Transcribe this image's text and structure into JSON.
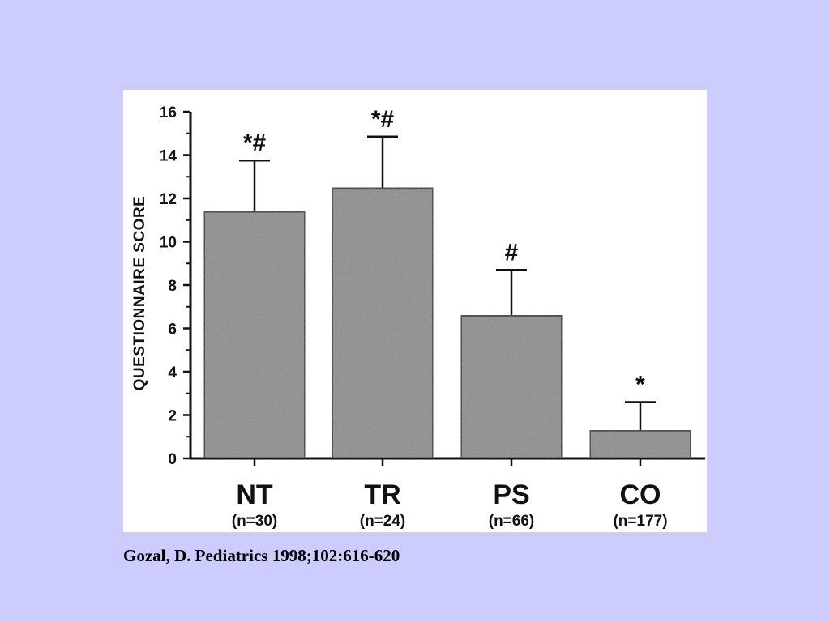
{
  "colors": {
    "background": "#ccccff",
    "panel": "#ffffff",
    "bar_fill": "#8a8a8a",
    "ink": "#111111"
  },
  "chart_data": {
    "type": "bar",
    "ylabel": "QUESTIONNAIRE SCORE",
    "xlabel": "",
    "ylim": [
      0,
      16
    ],
    "yticks": [
      0,
      2,
      4,
      6,
      8,
      10,
      12,
      14,
      16
    ],
    "grid": false,
    "categories": [
      "NT",
      "TR",
      "PS",
      "CO"
    ],
    "group_sizes": [
      "(n=30)",
      "(n=24)",
      "(n=66)",
      "(n=177)"
    ],
    "values": [
      11.4,
      12.5,
      6.6,
      1.3
    ],
    "error_upper": [
      13.75,
      14.85,
      8.7,
      2.6
    ],
    "annotations": [
      "*#",
      "*#",
      "#",
      "*"
    ]
  },
  "citation": "Gozal, D. Pediatrics 1998;102:616-620"
}
